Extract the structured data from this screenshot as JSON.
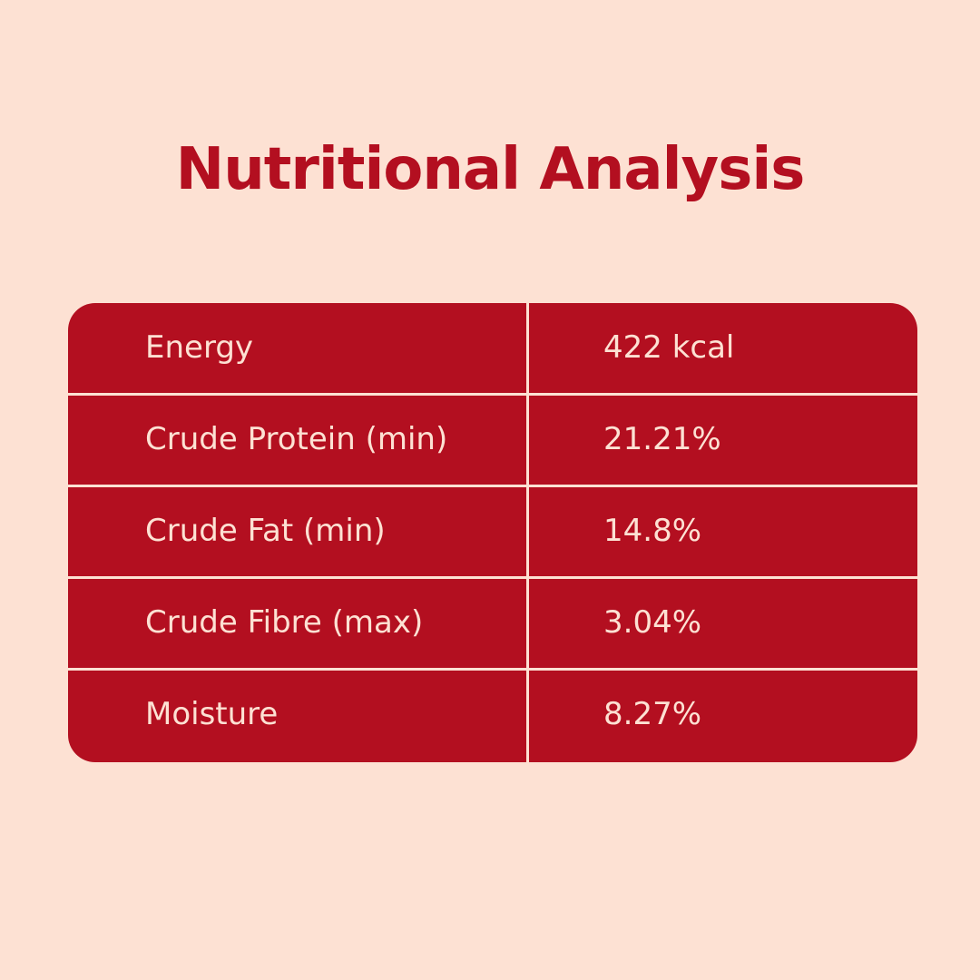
{
  "header": {
    "title": "Nutritional Analysis"
  },
  "table": {
    "rows": [
      [
        "Energy",
        "422 kcal"
      ],
      [
        "Crude Protein (min)",
        "21.21%"
      ],
      [
        "Crude Fat (min)",
        "14.8%"
      ],
      [
        "Crude Fibre (max)",
        "3.04%"
      ],
      [
        "Moisture",
        "8.27%"
      ]
    ]
  }
}
